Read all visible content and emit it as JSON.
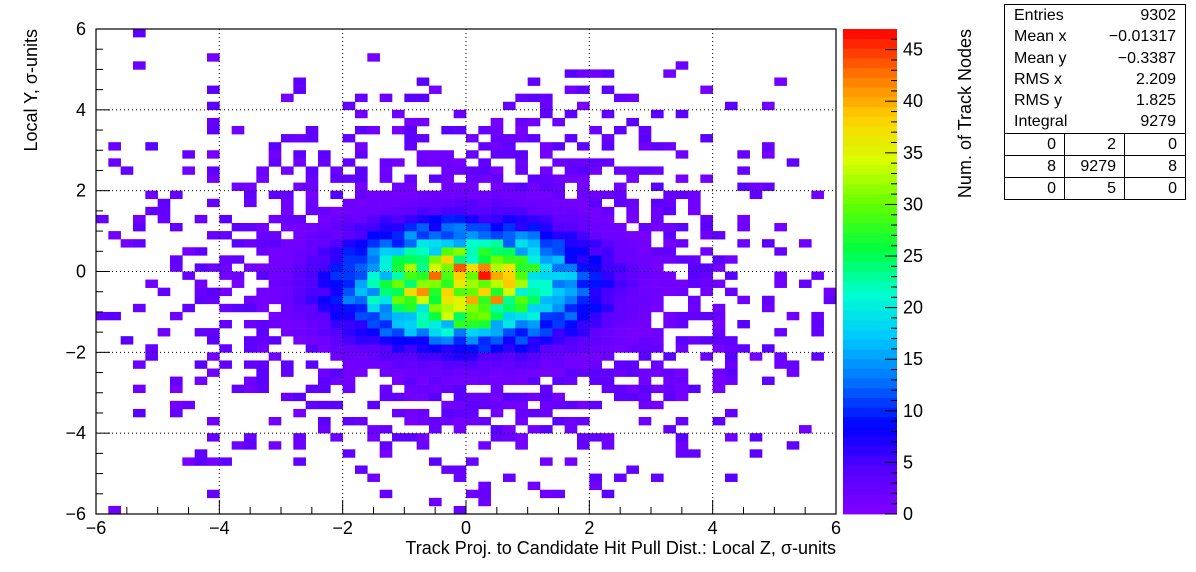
{
  "chart_data": {
    "type": "heatmap",
    "title": "",
    "xlabel": "Track Proj. to Candidate Hit Pull Dist.: Local Z, σ-units",
    "ylabel": "Local Y, σ-units",
    "xlim": [
      -6,
      6
    ],
    "ylim": [
      -6,
      6
    ],
    "x_ticks": [
      "−6",
      "−4",
      "−2",
      "0",
      "2",
      "4",
      "6"
    ],
    "y_ticks": [
      "−6",
      "−4",
      "−2",
      "0",
      "2",
      "4",
      "6"
    ],
    "bins": {
      "nx": 60,
      "ny": 60,
      "x_range": [
        -6,
        6
      ],
      "y_range": [
        -6,
        6
      ]
    },
    "distribution": {
      "description_values": "2D Gaussian-like density, peak near (0, -0.3)",
      "peak_value": 47,
      "center_x": -0.01317,
      "center_y": -0.3387,
      "sigma_x": 2.209,
      "sigma_y": 1.825,
      "entries": 9302
    },
    "colorbar": {
      "label": "Num. of Track Nodes",
      "min": 0,
      "max": 47,
      "ticks": [
        "0",
        "5",
        "10",
        "15",
        "20",
        "25",
        "30",
        "35",
        "40",
        "45"
      ],
      "palette": [
        "#8000ff",
        "#5500ff",
        "#0000ff",
        "#0070ff",
        "#00c8ff",
        "#00ffd0",
        "#00ff40",
        "#60ff00",
        "#d8ff00",
        "#ffd000",
        "#ff7000",
        "#ff0000"
      ]
    },
    "grid": true,
    "legend_position": "top-right"
  },
  "stats": {
    "rows": [
      {
        "label": "Entries",
        "value": "9302"
      },
      {
        "label": "Mean x",
        "value": "−0.01317"
      },
      {
        "label": "Mean y",
        "value": "−0.3387"
      },
      {
        "label": "RMS x",
        "value": "2.209"
      },
      {
        "label": "RMS y",
        "value": "1.825"
      },
      {
        "label": "Integral",
        "value": "9279"
      }
    ],
    "overflow_grid": [
      "0",
      "2",
      "0",
      "8",
      "9279",
      "8",
      "0",
      "5",
      "0"
    ]
  }
}
